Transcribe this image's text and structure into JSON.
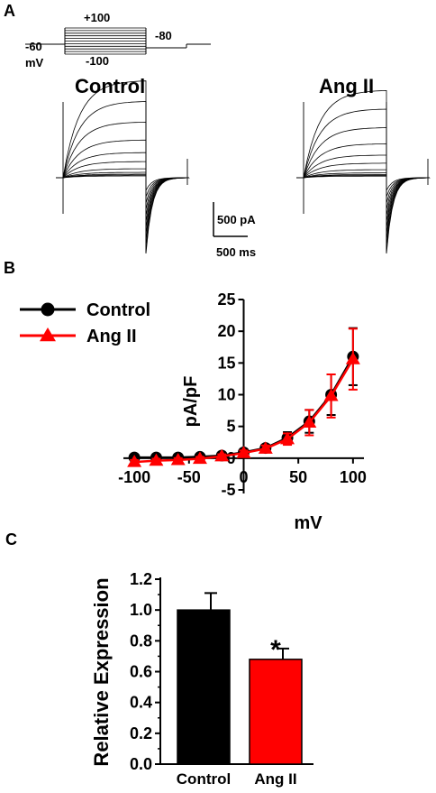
{
  "panels": {
    "a": {
      "letter": "A",
      "protocol": {
        "hold_label": "-60",
        "unit_label": "mV",
        "top_label": "+100",
        "bottom_label": "-100",
        "tail_label": "-80"
      },
      "trace_titles": [
        "Control",
        "Ang II"
      ],
      "scale_bar": {
        "current": "500 pA",
        "time": "500 ms"
      }
    },
    "b": {
      "letter": "B"
    },
    "c": {
      "letter": "C"
    }
  },
  "chart_data": [
    {
      "type": "line",
      "panel": "B",
      "xlabel": "mV",
      "ylabel": "pA/pF",
      "xlim": [
        -110,
        110
      ],
      "ylim": [
        -5,
        25
      ],
      "xticks": [
        -100,
        -50,
        0,
        50,
        100
      ],
      "yticks": [
        -5,
        0,
        5,
        10,
        15,
        20,
        25
      ],
      "legend": "top-left",
      "series": [
        {
          "name": "Control",
          "color": "#000000",
          "marker": "circle",
          "x": [
            -100,
            -80,
            -60,
            -40,
            -20,
            0,
            20,
            40,
            60,
            80,
            100
          ],
          "y": [
            0.1,
            0.1,
            0.1,
            0.2,
            0.4,
            0.9,
            1.6,
            3.2,
            5.8,
            10.0,
            16.0
          ],
          "error": [
            0.2,
            0.2,
            0.2,
            0.2,
            0.3,
            0.4,
            0.5,
            0.9,
            1.8,
            3.2,
            4.5
          ]
        },
        {
          "name": "Ang II",
          "color": "#ff0000",
          "marker": "triangle",
          "x": [
            -100,
            -80,
            -60,
            -40,
            -20,
            0,
            20,
            40,
            60,
            80,
            100
          ],
          "y": [
            -0.6,
            -0.4,
            -0.3,
            -0.1,
            0.3,
            0.8,
            1.5,
            3.0,
            5.6,
            9.8,
            15.6
          ],
          "error": [
            0.3,
            0.3,
            0.3,
            0.3,
            0.3,
            0.4,
            0.5,
            0.9,
            2.0,
            3.4,
            4.8
          ]
        }
      ]
    },
    {
      "type": "bar",
      "panel": "C",
      "categories": [
        "Control",
        "Ang II"
      ],
      "values": [
        1.0,
        0.68
      ],
      "errors": [
        0.11,
        0.07
      ],
      "colors": [
        "#000000",
        "#ff0000"
      ],
      "ylabel": "Relative Expression",
      "ylim": [
        0,
        1.2
      ],
      "yticks": [
        "0.0",
        "0.2",
        "0.4",
        "0.6",
        "0.8",
        "1.0",
        "1.2"
      ],
      "annotation": "*"
    }
  ]
}
